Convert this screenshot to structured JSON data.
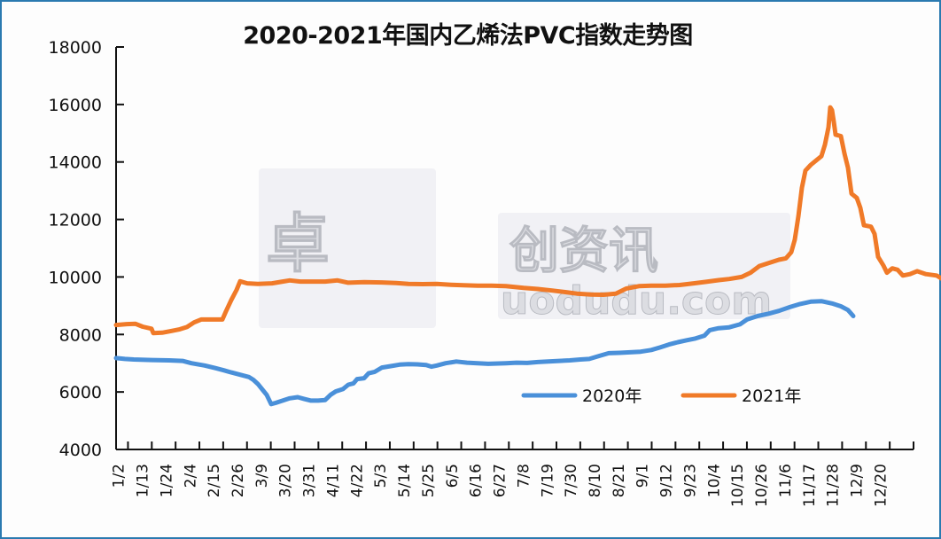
{
  "chart_data": {
    "type": "line",
    "title": "2020-2021年国内乙烯法PVC指数走势图",
    "xlabel": "",
    "ylabel": "",
    "ylim": [
      4000,
      18000
    ],
    "yticks": [
      4000,
      6000,
      8000,
      10000,
      12000,
      14000,
      16000,
      18000
    ],
    "x_tick_labels": [
      "1/2",
      "1/13",
      "1/24",
      "2/4",
      "2/15",
      "2/26",
      "3/9",
      "3/20",
      "3/31",
      "4/11",
      "4/22",
      "5/3",
      "5/14",
      "5/25",
      "6/5",
      "6/16",
      "6/27",
      "7/8",
      "7/19",
      "7/30",
      "8/10",
      "8/21",
      "9/1",
      "9/12",
      "9/23",
      "10/4",
      "10/15",
      "10/26",
      "11/6",
      "11/17",
      "11/28",
      "12/9",
      "12/20"
    ],
    "grid": false,
    "legend_position": "inside-lower-right",
    "x_range_days": [
      0,
      364
    ],
    "series": [
      {
        "name": "2020年",
        "color": "#4a90d9",
        "points": [
          [
            0,
            7180
          ],
          [
            10,
            7150
          ],
          [
            20,
            7130
          ],
          [
            40,
            7110
          ],
          [
            60,
            7100
          ],
          [
            75,
            7080
          ],
          [
            85,
            7000
          ],
          [
            100,
            6920
          ],
          [
            112,
            6830
          ],
          [
            122,
            6750
          ],
          [
            130,
            6680
          ],
          [
            140,
            6600
          ],
          [
            150,
            6520
          ],
          [
            155,
            6420
          ],
          [
            160,
            6280
          ],
          [
            166,
            6050
          ],
          [
            170,
            5900
          ],
          [
            175,
            5580
          ],
          [
            180,
            5620
          ],
          [
            188,
            5700
          ],
          [
            196,
            5780
          ],
          [
            205,
            5820
          ],
          [
            212,
            5760
          ],
          [
            220,
            5700
          ],
          [
            228,
            5700
          ],
          [
            236,
            5720
          ],
          [
            242,
            5900
          ],
          [
            248,
            6020
          ],
          [
            256,
            6100
          ],
          [
            262,
            6250
          ],
          [
            268,
            6300
          ],
          [
            272,
            6450
          ],
          [
            280,
            6480
          ],
          [
            285,
            6650
          ],
          [
            292,
            6700
          ],
          [
            300,
            6850
          ],
          [
            310,
            6900
          ],
          [
            320,
            6950
          ],
          [
            330,
            6970
          ],
          [
            340,
            6960
          ],
          [
            350,
            6940
          ],
          [
            356,
            6880
          ],
          [
            362,
            6920
          ],
          [
            372,
            7000
          ],
          [
            384,
            7060
          ],
          [
            396,
            7020
          ],
          [
            408,
            7000
          ],
          [
            420,
            6980
          ],
          [
            432,
            6990
          ],
          [
            440,
            7000
          ],
          [
            452,
            7020
          ],
          [
            464,
            7010
          ],
          [
            476,
            7040
          ],
          [
            488,
            7060
          ],
          [
            500,
            7080
          ],
          [
            512,
            7100
          ],
          [
            524,
            7130
          ],
          [
            534,
            7150
          ],
          [
            544,
            7240
          ],
          [
            556,
            7350
          ],
          [
            568,
            7360
          ],
          [
            580,
            7380
          ],
          [
            592,
            7400
          ],
          [
            604,
            7460
          ],
          [
            614,
            7550
          ],
          [
            624,
            7650
          ],
          [
            634,
            7730
          ],
          [
            644,
            7800
          ],
          [
            654,
            7860
          ],
          [
            664,
            7960
          ],
          [
            670,
            8150
          ],
          [
            680,
            8220
          ],
          [
            692,
            8250
          ],
          [
            704,
            8350
          ],
          [
            712,
            8520
          ],
          [
            724,
            8640
          ],
          [
            736,
            8720
          ],
          [
            748,
            8820
          ],
          [
            760,
            8950
          ],
          [
            772,
            9060
          ],
          [
            784,
            9140
          ],
          [
            796,
            9160
          ],
          [
            808,
            9080
          ],
          [
            818,
            8980
          ],
          [
            826,
            8850
          ],
          [
            832,
            8640
          ]
        ]
      },
      {
        "name": "2021年",
        "color": "#f07a28",
        "points": [
          [
            0,
            8330
          ],
          [
            12,
            8360
          ],
          [
            22,
            8370
          ],
          [
            30,
            8270
          ],
          [
            40,
            8200
          ],
          [
            42,
            8050
          ],
          [
            52,
            8060
          ],
          [
            62,
            8120
          ],
          [
            72,
            8180
          ],
          [
            80,
            8260
          ],
          [
            88,
            8420
          ],
          [
            96,
            8520
          ],
          [
            120,
            8520
          ],
          [
            124,
            8800
          ],
          [
            130,
            9200
          ],
          [
            136,
            9550
          ],
          [
            140,
            9850
          ],
          [
            148,
            9780
          ],
          [
            160,
            9760
          ],
          [
            176,
            9780
          ],
          [
            188,
            9840
          ],
          [
            196,
            9880
          ],
          [
            208,
            9840
          ],
          [
            228,
            9840
          ],
          [
            236,
            9840
          ],
          [
            250,
            9880
          ],
          [
            262,
            9800
          ],
          [
            280,
            9820
          ],
          [
            300,
            9810
          ],
          [
            316,
            9790
          ],
          [
            330,
            9760
          ],
          [
            346,
            9750
          ],
          [
            362,
            9760
          ],
          [
            378,
            9730
          ],
          [
            392,
            9710
          ],
          [
            408,
            9700
          ],
          [
            424,
            9700
          ],
          [
            440,
            9680
          ],
          [
            460,
            9620
          ],
          [
            476,
            9580
          ],
          [
            492,
            9530
          ],
          [
            508,
            9470
          ],
          [
            520,
            9420
          ],
          [
            536,
            9390
          ],
          [
            550,
            9380
          ],
          [
            564,
            9420
          ],
          [
            576,
            9600
          ],
          [
            590,
            9680
          ],
          [
            604,
            9700
          ],
          [
            620,
            9700
          ],
          [
            636,
            9720
          ],
          [
            652,
            9780
          ],
          [
            666,
            9830
          ],
          [
            680,
            9890
          ],
          [
            692,
            9930
          ],
          [
            706,
            10000
          ],
          [
            716,
            10150
          ],
          [
            726,
            10380
          ],
          [
            736,
            10480
          ],
          [
            748,
            10600
          ],
          [
            756,
            10650
          ],
          [
            762,
            10860
          ],
          [
            766,
            11300
          ],
          [
            770,
            12100
          ],
          [
            774,
            13100
          ],
          [
            778,
            13700
          ],
          [
            784,
            13900
          ],
          [
            790,
            14050
          ],
          [
            796,
            14200
          ],
          [
            800,
            14600
          ],
          [
            804,
            15200
          ],
          [
            806,
            15900
          ],
          [
            808,
            15800
          ],
          [
            810,
            15400
          ],
          [
            812,
            14950
          ],
          [
            818,
            14900
          ],
          [
            822,
            14300
          ],
          [
            826,
            13800
          ],
          [
            830,
            12900
          ],
          [
            836,
            12750
          ],
          [
            840,
            12400
          ],
          [
            844,
            11800
          ],
          [
            852,
            11750
          ],
          [
            856,
            11500
          ],
          [
            860,
            10700
          ],
          [
            866,
            10400
          ],
          [
            870,
            10150
          ],
          [
            876,
            10300
          ],
          [
            882,
            10250
          ],
          [
            888,
            10050
          ],
          [
            896,
            10100
          ],
          [
            904,
            10200
          ],
          [
            914,
            10100
          ],
          [
            926,
            10050
          ],
          [
            934,
            9900
          ],
          [
            940,
            9850
          ],
          [
            946,
            9700
          ],
          [
            952,
            9550
          ],
          [
            958,
            9400
          ]
        ]
      }
    ]
  },
  "legend": {
    "items": [
      {
        "label": "2020年",
        "color": "#4a90d9"
      },
      {
        "label": "2021年",
        "color": "#f07a28"
      }
    ]
  },
  "watermark": {
    "text": "卓创资讯",
    "domain": "uodudu.com"
  }
}
